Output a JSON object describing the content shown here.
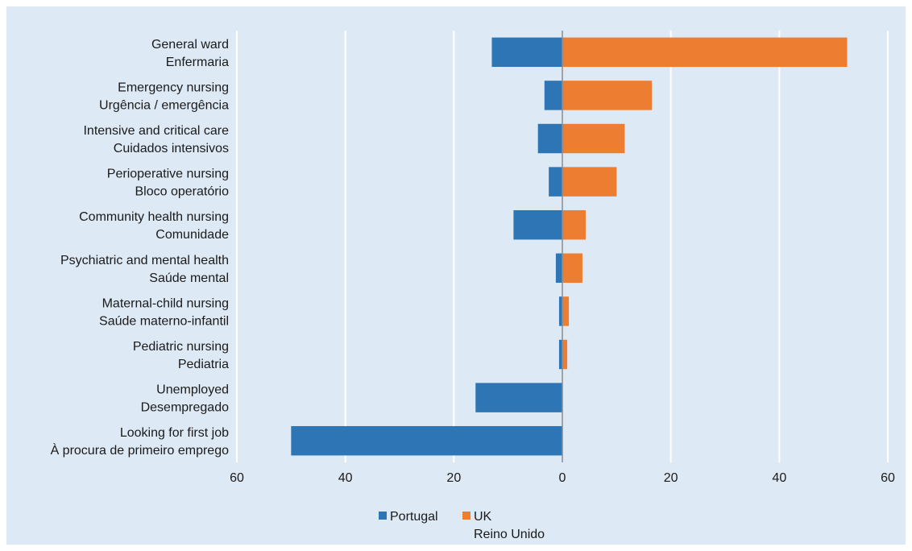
{
  "chart_data": {
    "type": "bar",
    "orientation": "horizontal",
    "diverging": true,
    "categories": [
      [
        "General ward",
        "Enfermaria"
      ],
      [
        "Emergency nursing",
        "Urgência / emergência"
      ],
      [
        "Intensive and critical care",
        "Cuidados intensivos"
      ],
      [
        "Perioperative nursing",
        "Bloco operatório"
      ],
      [
        "Community health nursing",
        "Comunidade"
      ],
      [
        "Psychiatric and mental health",
        "Saúde mental"
      ],
      [
        "Maternal-child nursing",
        "Saúde materno-infantil"
      ],
      [
        "Pediatric nursing",
        "Pediatria"
      ],
      [
        "Unemployed",
        "Desempregado"
      ],
      [
        "Looking for first job",
        "À procura de primeiro emprego"
      ]
    ],
    "series": [
      {
        "name": "Portugal",
        "color": "#2e75b6",
        "direction": "left",
        "values": [
          13,
          3.3,
          4.5,
          2.5,
          9,
          1.2,
          0.6,
          0.6,
          16,
          50
        ]
      },
      {
        "name": [
          "UK",
          "Reino Unido"
        ],
        "color": "#ed7d31",
        "direction": "right",
        "values": [
          52.5,
          16.5,
          11.5,
          10,
          4.3,
          3.7,
          1.2,
          0.9,
          0,
          0
        ]
      }
    ],
    "xlim": [
      -60,
      60
    ],
    "xticks": [
      -60,
      -40,
      -20,
      0,
      20,
      40,
      60
    ],
    "xtick_labels": [
      "60",
      "40",
      "20",
      "0",
      "20",
      "40",
      "60"
    ],
    "grid": "vertical",
    "legend": "bottom-center"
  }
}
